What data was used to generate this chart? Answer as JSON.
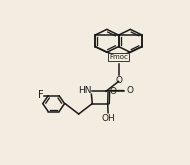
{
  "background_color": "#f2ede0",
  "line_color": "#1a1a1a",
  "line_width": 1.1,
  "fmoc_box_color": "#f2ede0",
  "fmoc_label": "Fmoc",
  "label_O1": "O",
  "label_HN": "HN",
  "label_O2": "O",
  "label_O3": "O",
  "label_OH": "OH",
  "label_F": "F",
  "font_size_atom": 6.5,
  "font_size_fmoc": 5.0
}
